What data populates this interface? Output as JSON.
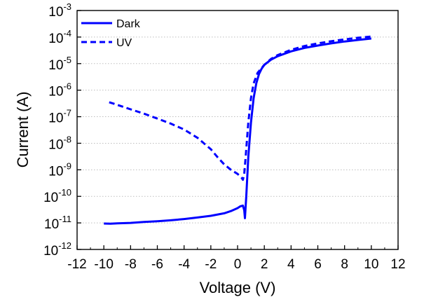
{
  "chart_data": {
    "type": "line",
    "title": "",
    "xlabel": "Voltage (V)",
    "ylabel": "Current (A)",
    "x_scale": "linear",
    "y_scale": "log",
    "xlim": [
      -12,
      12
    ],
    "ylim": [
      1e-12,
      0.001
    ],
    "x_ticks": [
      -12,
      -10,
      -8,
      -6,
      -4,
      -2,
      0,
      2,
      4,
      6,
      8,
      10,
      12
    ],
    "x_tick_labels": [
      "-12",
      "-10",
      "-8",
      "-6",
      "-4",
      "-2",
      "0",
      "2",
      "4",
      "6",
      "8",
      "10",
      "12"
    ],
    "y_ticks": [
      {
        "base": "10",
        "exp": "-12",
        "value": 1e-12
      },
      {
        "base": "10",
        "exp": "-11",
        "value": 1e-11
      },
      {
        "base": "10",
        "exp": "-10",
        "value": 1e-10
      },
      {
        "base": "10",
        "exp": "-9",
        "value": 1e-09
      },
      {
        "base": "10",
        "exp": "-8",
        "value": 1e-08
      },
      {
        "base": "10",
        "exp": "-7",
        "value": 1e-07
      },
      {
        "base": "10",
        "exp": "-6",
        "value": 1e-06
      },
      {
        "base": "10",
        "exp": "-5",
        "value": 1e-05
      },
      {
        "base": "10",
        "exp": "-4",
        "value": 0.0001
      },
      {
        "base": "10",
        "exp": "-3",
        "value": 0.001
      }
    ],
    "grid": "horizontal dotted at major y ticks",
    "legend_position": "top-left",
    "series": [
      {
        "name": "Dark",
        "color": "#0000ff",
        "line_style": "solid",
        "x": [
          -10,
          -9.5,
          -9,
          -8,
          -7,
          -6,
          -5,
          -4,
          -3,
          -2,
          -1,
          -0.5,
          0,
          0.2,
          0.4,
          0.5,
          0.55,
          0.65,
          0.8,
          1.0,
          1.2,
          1.4,
          1.6,
          1.8,
          2.0,
          2.5,
          3,
          4,
          5,
          6,
          7,
          8,
          9,
          10
        ],
        "y": [
          9.5e-12,
          9.3e-12,
          9.6e-12,
          1e-11,
          1.08e-11,
          1.15e-11,
          1.25e-11,
          1.4e-11,
          1.6e-11,
          1.85e-11,
          2.3e-11,
          2.8e-11,
          3.6e-11,
          4.2e-11,
          4.5e-11,
          3e-11,
          1.5e-11,
          1e-10,
          3e-09,
          6e-08,
          5e-07,
          1.8e-06,
          4e-06,
          6.5e-06,
          9e-06,
          1.4e-05,
          1.9e-05,
          2.9e-05,
          3.9e-05,
          4.8e-05,
          5.8e-05,
          6.8e-05,
          7.8e-05,
          8.8e-05
        ]
      },
      {
        "name": "UV",
        "color": "#0000ff",
        "line_style": "dashed",
        "x": [
          -9.6,
          -9,
          -8,
          -7,
          -6,
          -5,
          -4,
          -3,
          -2,
          -1.5,
          -1,
          -0.5,
          0,
          0.3,
          0.4,
          0.5,
          0.6,
          0.8,
          1.0,
          1.2,
          1.5,
          2,
          2.5,
          3,
          4,
          5,
          6,
          7,
          8,
          9,
          10
        ],
        "y": [
          3.5e-07,
          2.8e-07,
          1.9e-07,
          1.3e-07,
          8.5e-08,
          5.5e-08,
          3.3e-08,
          1.6e-08,
          6e-09,
          3e-09,
          1.6e-09,
          1e-09,
          7e-10,
          5e-10,
          4.2e-10,
          7e-10,
          3e-09,
          6e-08,
          5e-07,
          1.8e-06,
          4.5e-06,
          9e-06,
          1.5e-05,
          2.1e-05,
          3.3e-05,
          4.6e-05,
          5.8e-05,
          7e-05,
          8.2e-05,
          9.4e-05,
          0.000105
        ]
      }
    ]
  }
}
